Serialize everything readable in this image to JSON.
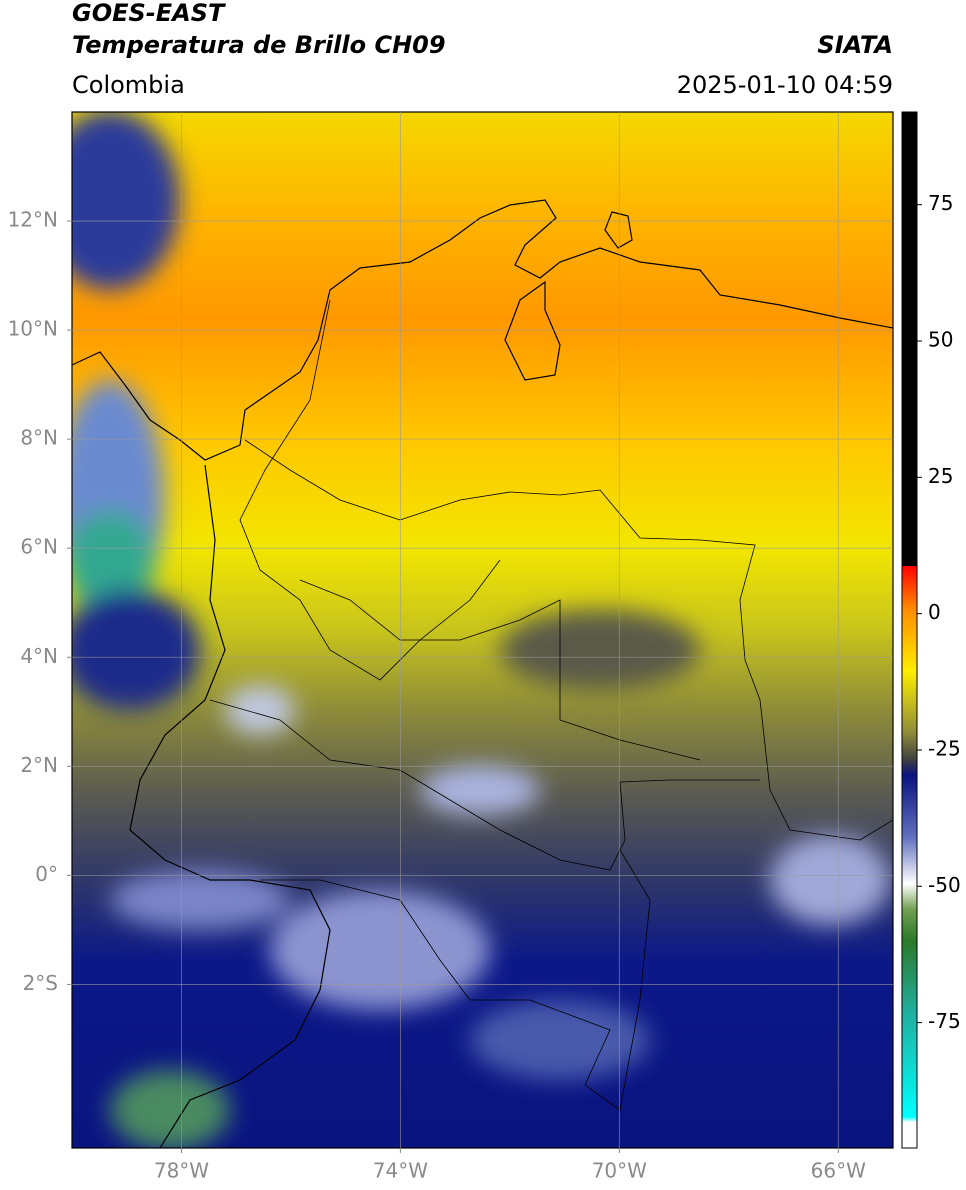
{
  "header": {
    "satellite": "GOES-EAST",
    "product": "Temperatura de Brillo CH09",
    "region": "Colombia",
    "source": "SIATA",
    "datetime": "2025-01-10 04:59"
  },
  "map": {
    "lon_range": [
      -80,
      -65
    ],
    "lat_range": [
      -5,
      14
    ],
    "lon_ticks": [
      {
        "value": -78,
        "label": "78°W"
      },
      {
        "value": -74,
        "label": "74°W"
      },
      {
        "value": -70,
        "label": "70°W"
      },
      {
        "value": -66,
        "label": "66°W"
      }
    ],
    "lat_ticks": [
      {
        "value": 12,
        "label": "12°N"
      },
      {
        "value": 10,
        "label": "10°N"
      },
      {
        "value": 8,
        "label": "8°N"
      },
      {
        "value": 6,
        "label": "6°N"
      },
      {
        "value": 4,
        "label": "4°N"
      },
      {
        "value": 2,
        "label": "2°N"
      },
      {
        "value": 0,
        "label": "0°"
      },
      {
        "value": -2,
        "label": "2°S"
      }
    ]
  },
  "colorbar": {
    "range": [
      -98,
      92
    ],
    "ticks": [
      75,
      50,
      25,
      0,
      -25,
      -50,
      -75
    ]
  }
}
